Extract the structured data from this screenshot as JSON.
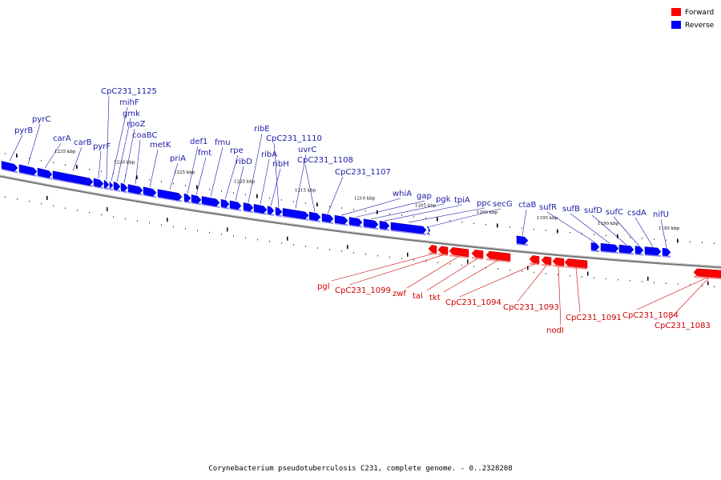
{
  "caption": "Corynebacterium pseudotuberculosis C231, complete genome. - 0..2328208",
  "legend": [
    {
      "label": "Forward",
      "color": "#ff0000"
    },
    {
      "label": "Reverse",
      "color": "#0000ff"
    }
  ],
  "colors": {
    "forward": "#ff0000",
    "reverse": "#0000ff",
    "label_forward": "#cc0000",
    "label_reverse": "#1a1aa6",
    "axis": "#777777"
  },
  "ticks": [
    "1235 kbp",
    "1230 kbp",
    "1225 kbp",
    "1220 kbp",
    "1215 kbp",
    "1210 kbp",
    "1205 kbp",
    "1200 kbp",
    "1195 kbp",
    "1190 kbp",
    "1185 kbp"
  ],
  "reverse_genes": [
    "pyrB",
    "pyrC",
    "carA",
    "carB",
    "pyrF",
    "CpC231_1125",
    "mihF",
    "gmk",
    "rpoZ",
    "coaBC",
    "metK",
    "priA",
    "def1",
    "fmt",
    "fmu",
    "rpe",
    "ribD",
    "ribE",
    "ribA",
    "ribH",
    "CpC231_1110",
    "uvrC",
    "CpC231_1108",
    "CpC231_1107",
    "whiA",
    "gap",
    "pgk",
    "tpiA",
    "ppc",
    "secG",
    "ctaB",
    "sufR",
    "sufB",
    "sufD",
    "sufC",
    "csdA",
    "nifU"
  ],
  "forward_genes": [
    "pgl",
    "CpC231_1099",
    "zwf",
    "tal",
    "tkt",
    "CpC231_1094",
    "CpC231_1093",
    "nodI",
    "CpC231_1091",
    "CpC231_1084",
    "CpC231_1083"
  ]
}
